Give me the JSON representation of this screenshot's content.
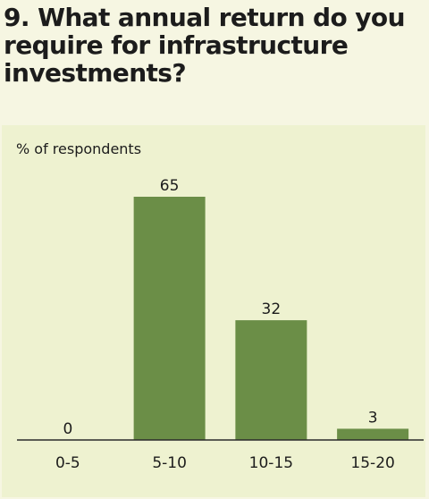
{
  "title": "9. What annual return do you require for infrastructure investments?",
  "colors": {
    "page_background": "#f6f6e2",
    "panel_background": "#eef2d0",
    "bar": "#6b8e47",
    "axis": "#2a2a2a",
    "text": "#1c1c1c"
  },
  "chart_data": {
    "type": "bar",
    "title": "9. What annual return do you require for infrastructure investments?",
    "ylabel": "% of respondents",
    "xlabel": "",
    "categories": [
      "0-5",
      "5-10",
      "10-15",
      "15-20"
    ],
    "values": [
      0,
      65,
      32,
      3
    ],
    "ylim": [
      0,
      65
    ],
    "grid": false,
    "legend": "none",
    "data_labels": true
  }
}
